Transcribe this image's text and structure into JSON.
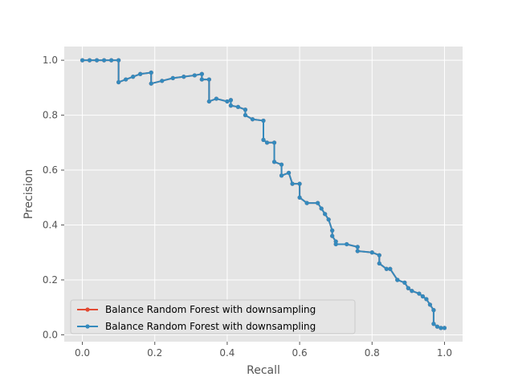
{
  "chart_data": {
    "type": "line",
    "title": "",
    "xlabel": "Recall",
    "ylabel": "Precision",
    "xlim": [
      -0.05,
      1.05
    ],
    "ylim": [
      -0.025,
      1.05
    ],
    "xticks": [
      "0.0",
      "0.2",
      "0.4",
      "0.6",
      "0.8",
      "1.0"
    ],
    "yticks": [
      "0.0",
      "0.2",
      "0.4",
      "0.6",
      "0.8",
      "1.0"
    ],
    "grid": true,
    "background_color": "#E5E5E5",
    "legend_position": "lower-left",
    "series": [
      {
        "name": "Balance Random Forest with downsampling",
        "color": "#E24A33",
        "marker": "circle",
        "x": [
          0.0,
          0.02,
          0.04,
          0.06,
          0.08,
          0.1,
          0.1,
          0.12,
          0.14,
          0.16,
          0.19,
          0.19,
          0.22,
          0.25,
          0.28,
          0.31,
          0.33,
          0.33,
          0.35,
          0.35,
          0.37,
          0.4,
          0.41,
          0.41,
          0.43,
          0.45,
          0.45,
          0.47,
          0.5,
          0.5,
          0.51,
          0.53,
          0.53,
          0.55,
          0.55,
          0.57,
          0.58,
          0.6,
          0.6,
          0.62,
          0.65,
          0.66,
          0.67,
          0.68,
          0.69,
          0.69,
          0.7,
          0.7,
          0.73,
          0.76,
          0.76,
          0.8,
          0.82,
          0.82,
          0.84,
          0.85,
          0.87,
          0.87,
          0.89,
          0.9,
          0.91,
          0.93,
          0.94,
          0.95,
          0.96,
          0.97,
          0.97,
          0.98,
          0.99,
          1.0
        ],
        "y": [
          1.0,
          1.0,
          1.0,
          1.0,
          1.0,
          1.0,
          0.92,
          0.93,
          0.94,
          0.95,
          0.955,
          0.915,
          0.925,
          0.935,
          0.94,
          0.945,
          0.95,
          0.93,
          0.93,
          0.85,
          0.86,
          0.85,
          0.855,
          0.835,
          0.83,
          0.82,
          0.8,
          0.785,
          0.78,
          0.71,
          0.7,
          0.7,
          0.63,
          0.62,
          0.58,
          0.59,
          0.55,
          0.55,
          0.5,
          0.48,
          0.48,
          0.46,
          0.44,
          0.42,
          0.38,
          0.36,
          0.34,
          0.33,
          0.33,
          0.32,
          0.305,
          0.3,
          0.29,
          0.26,
          0.24,
          0.24,
          0.2,
          0.2,
          0.19,
          0.17,
          0.16,
          0.15,
          0.14,
          0.13,
          0.11,
          0.09,
          0.04,
          0.03,
          0.025,
          0.025
        ]
      },
      {
        "name": "Balance Random Forest with downsampling",
        "color": "#348ABD",
        "marker": "circle",
        "x": [
          0.0,
          0.02,
          0.04,
          0.06,
          0.08,
          0.1,
          0.1,
          0.12,
          0.14,
          0.16,
          0.19,
          0.19,
          0.22,
          0.25,
          0.28,
          0.31,
          0.33,
          0.33,
          0.35,
          0.35,
          0.37,
          0.4,
          0.41,
          0.41,
          0.43,
          0.45,
          0.45,
          0.47,
          0.5,
          0.5,
          0.51,
          0.53,
          0.53,
          0.55,
          0.55,
          0.57,
          0.58,
          0.6,
          0.6,
          0.62,
          0.65,
          0.66,
          0.67,
          0.68,
          0.69,
          0.69,
          0.7,
          0.7,
          0.73,
          0.76,
          0.76,
          0.8,
          0.82,
          0.82,
          0.84,
          0.85,
          0.87,
          0.87,
          0.89,
          0.9,
          0.91,
          0.93,
          0.94,
          0.95,
          0.96,
          0.97,
          0.97,
          0.98,
          0.99,
          1.0
        ],
        "y": [
          1.0,
          1.0,
          1.0,
          1.0,
          1.0,
          1.0,
          0.92,
          0.93,
          0.94,
          0.95,
          0.955,
          0.915,
          0.925,
          0.935,
          0.94,
          0.945,
          0.95,
          0.93,
          0.93,
          0.85,
          0.86,
          0.85,
          0.855,
          0.835,
          0.83,
          0.82,
          0.8,
          0.785,
          0.78,
          0.71,
          0.7,
          0.7,
          0.63,
          0.62,
          0.58,
          0.59,
          0.55,
          0.55,
          0.5,
          0.48,
          0.48,
          0.46,
          0.44,
          0.42,
          0.38,
          0.36,
          0.34,
          0.33,
          0.33,
          0.32,
          0.305,
          0.3,
          0.29,
          0.26,
          0.24,
          0.24,
          0.2,
          0.2,
          0.19,
          0.17,
          0.16,
          0.15,
          0.14,
          0.13,
          0.11,
          0.09,
          0.04,
          0.03,
          0.025,
          0.025
        ]
      }
    ]
  }
}
